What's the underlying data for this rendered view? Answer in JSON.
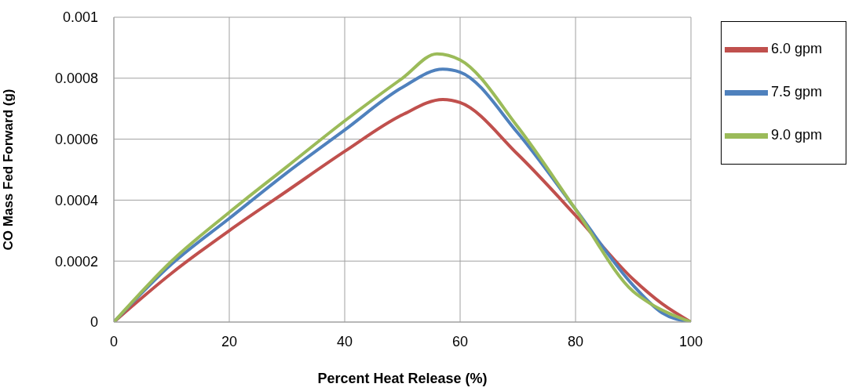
{
  "chart_data": {
    "type": "line",
    "xlabel": "Percent Heat Release (%)",
    "ylabel": "CO Mass Fed Forward (g)",
    "xlim": [
      0,
      100
    ],
    "xticks": [
      0,
      20,
      40,
      60,
      80,
      100
    ],
    "ylim": [
      0,
      0.001
    ],
    "yticks": [
      0,
      0.0002,
      0.0004,
      0.0006,
      0.0008,
      0.001
    ],
    "grid": true,
    "legend": "right",
    "marker": "none",
    "line_style": "solid",
    "series": [
      {
        "name": "6.0 gpm",
        "color": "#c0504d",
        "x": [
          0,
          10,
          20,
          30,
          40,
          50,
          57,
          60,
          70,
          80,
          90,
          95,
          100
        ],
        "values": [
          0,
          0.00016,
          0.0003,
          0.00043,
          0.00056,
          0.00068,
          0.00073,
          0.00072,
          0.00055,
          0.00035,
          0.00014,
          6e-05,
          0
        ]
      },
      {
        "name": "7.5 gpm",
        "color": "#4f81bd",
        "x": [
          0,
          10,
          20,
          30,
          40,
          50,
          57,
          60,
          70,
          80,
          90,
          95,
          100
        ],
        "values": [
          0,
          0.00019,
          0.00034,
          0.00049,
          0.00063,
          0.00077,
          0.00083,
          0.00082,
          0.00062,
          0.00037,
          0.00012,
          3e-05,
          0
        ]
      },
      {
        "name": "9.0 gpm",
        "color": "#9bbb59",
        "x": [
          0,
          10,
          20,
          30,
          40,
          50,
          56,
          60,
          70,
          80,
          90,
          93,
          100
        ],
        "values": [
          0,
          0.0002,
          0.00036,
          0.00051,
          0.00066,
          0.0008,
          0.00088,
          0.00086,
          0.00064,
          0.00037,
          0.0001,
          6e-05,
          0
        ]
      }
    ]
  }
}
